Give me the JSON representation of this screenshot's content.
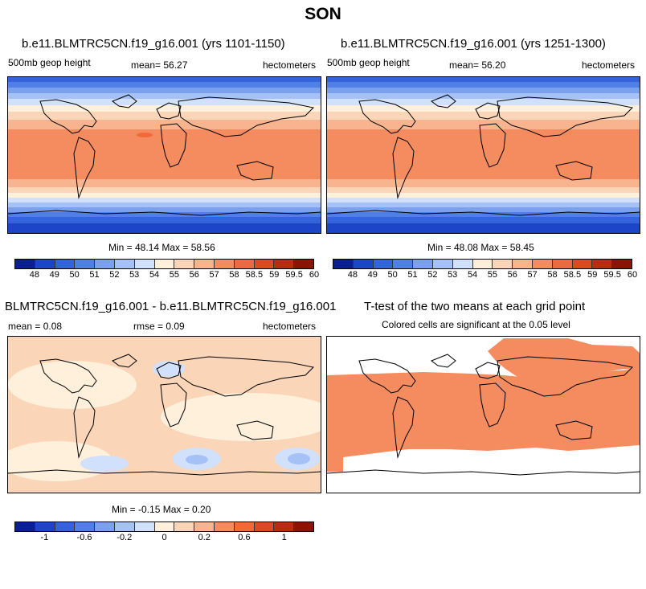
{
  "main_title": "SON",
  "panels": {
    "top_left": {
      "title": "b.e11.BLMTRC5CN.f19_g16.001 (yrs 1101-1150)",
      "variable": "500mb geop height",
      "mean_label": "mean=  56.27",
      "units": "hectometers",
      "minmax": "Min = 48.14 Max = 58.56"
    },
    "top_right": {
      "title": "b.e11.BLMTRC5CN.f19_g16.001 (yrs 1251-1300)",
      "variable": "500mb geop height",
      "mean_label": "mean=  56.20",
      "units": "hectometers",
      "minmax": "Min = 48.08 Max = 58.45"
    },
    "bottom_left": {
      "title": "BLMTRC5CN.f19_g16.001 - b.e11.BLMTRC5CN.f19_g16.001",
      "mean_label": "mean =   0.08",
      "rmse_label": "rmse =   0.09",
      "units": "hectometers",
      "minmax": "Min = -0.15 Max =  0.20"
    },
    "bottom_right": {
      "title": "T-test of the two means at each grid point",
      "subtitle": "Colored cells are significant at the 0.05 level"
    }
  },
  "colorbar": {
    "colors": [
      "#0a1f96",
      "#1c45c8",
      "#3463dc",
      "#5080e6",
      "#7aa0ee",
      "#a5c1f5",
      "#d2e1fb",
      "#fff0dc",
      "#fbd5b8",
      "#f8b48e",
      "#f48c60",
      "#ee6a3c",
      "#dc4a24",
      "#b82c12",
      "#8b1405"
    ],
    "abs_ticks": [
      "48",
      "49",
      "50",
      "51",
      "52",
      "53",
      "54",
      "55",
      "56",
      "57",
      "58",
      "58.5",
      "59",
      "59.5",
      "60"
    ],
    "diff_ticks": [
      "-1",
      "-0.6",
      "-0.2",
      "0",
      "0.2",
      "0.6",
      "1"
    ]
  }
}
